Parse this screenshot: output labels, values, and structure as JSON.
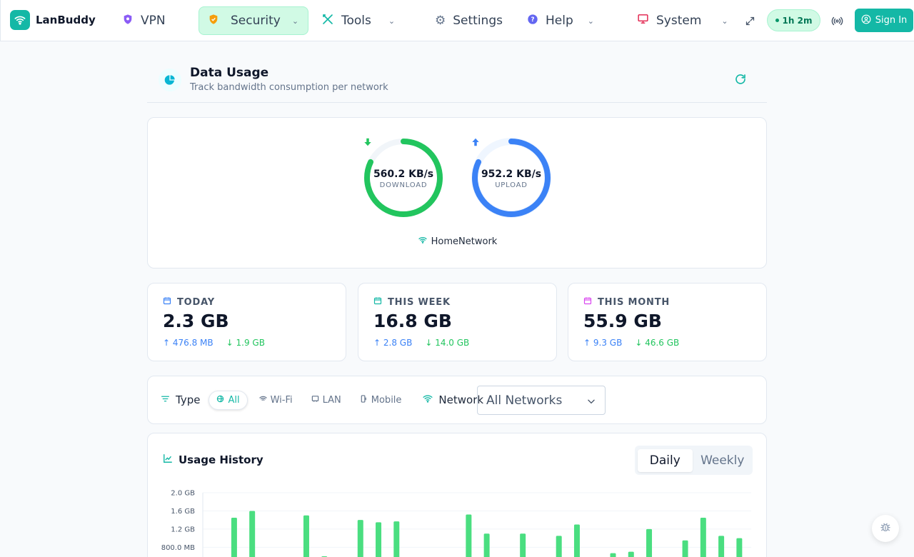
{
  "app": {
    "name": "LanBuddy"
  },
  "nav": {
    "vpn": "VPN",
    "security": "Security",
    "tools": "Tools",
    "settings": "Settings",
    "help": "Help",
    "system": "System",
    "session_timer": "1h 2m",
    "sign_in": "Sign In"
  },
  "header": {
    "title": "Data Usage",
    "subtitle": "Track bandwidth consumption per network"
  },
  "speed": {
    "download_value": "560.2 KB/s",
    "download_label": "DOWNLOAD",
    "download_fraction": 0.82,
    "upload_value": "952.2 KB/s",
    "upload_label": "UPLOAD",
    "upload_fraction": 0.82,
    "network": "HomeNetwork"
  },
  "stats": {
    "today": {
      "label": "TODAY",
      "total": "2.3 GB",
      "up": "476.8 MB",
      "down": "1.9 GB"
    },
    "week": {
      "label": "THIS WEEK",
      "total": "16.8 GB",
      "up": "2.8 GB",
      "down": "14.0 GB"
    },
    "month": {
      "label": "THIS MONTH",
      "total": "55.9 GB",
      "up": "9.3 GB",
      "down": "46.6 GB"
    }
  },
  "filters": {
    "type_label": "Type",
    "types": [
      "All",
      "Wi-Fi",
      "LAN",
      "Mobile"
    ],
    "network_label": "Network",
    "network_selected": "All Networks"
  },
  "history": {
    "title": "Usage History",
    "daily": "Daily",
    "weekly": "Weekly"
  },
  "colors": {
    "accent": "#14b8a6",
    "download": "#22c55e",
    "upload": "#3b82f6",
    "bar": "#4ade80"
  },
  "chart_data": {
    "type": "bar",
    "title": "Usage History",
    "ytick_labels": [
      "2.0 GB",
      "1.6 GB",
      "1.2 GB",
      "800.0 MB"
    ],
    "ylim": [
      0,
      2.0
    ],
    "yunit": "GB",
    "grid": true,
    "values": [
      0,
      1.45,
      1.6,
      0,
      0,
      1.5,
      0.6,
      0,
      1.4,
      1.35,
      1.37,
      0,
      0,
      0,
      1.52,
      1.1,
      0,
      1.1,
      0.55,
      1.05,
      1.3,
      0,
      0.67,
      0.7,
      1.2,
      0.58,
      0.95,
      1.45,
      1.05,
      1.0
    ]
  }
}
